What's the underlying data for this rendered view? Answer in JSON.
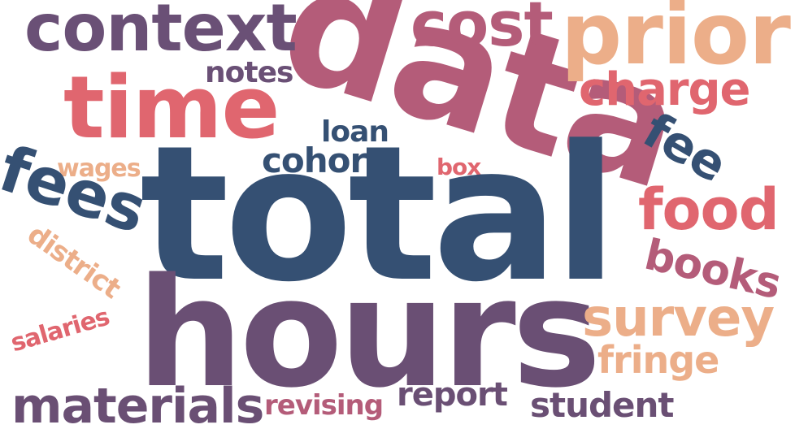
{
  "cloud": {
    "words": {
      "total": {
        "text": "total",
        "color": "#355073"
      },
      "hours": {
        "text": "hours",
        "color": "#6a4f74"
      },
      "data": {
        "text": "data",
        "color": "#b45c79"
      },
      "prior": {
        "text": "prior",
        "color": "#ecae89"
      },
      "time": {
        "text": "time",
        "color": "#e0666f"
      },
      "context": {
        "text": "context",
        "color": "#6a5076"
      },
      "cost": {
        "text": "cost",
        "color": "#b45c79"
      },
      "charge": {
        "text": "charge",
        "color": "#e0666f"
      },
      "fees": {
        "text": "fees",
        "color": "#355073"
      },
      "food": {
        "text": "food",
        "color": "#e0666f"
      },
      "fee": {
        "text": "fee",
        "color": "#355073"
      },
      "books": {
        "text": "books",
        "color": "#b45c79"
      },
      "survey": {
        "text": "survey",
        "color": "#ecae89"
      },
      "fringe": {
        "text": "fringe",
        "color": "#ecae89"
      },
      "materials": {
        "text": "materials",
        "color": "#6a4f74"
      },
      "student": {
        "text": "student",
        "color": "#6a4f74"
      },
      "report": {
        "text": "report",
        "color": "#6a4f74"
      },
      "revising": {
        "text": "revising",
        "color": "#b45c79"
      },
      "salaries": {
        "text": "salaries",
        "color": "#e0666f"
      },
      "district": {
        "text": "district",
        "color": "#ecae89"
      },
      "wages": {
        "text": "wages",
        "color": "#ecae89"
      },
      "notes": {
        "text": "notes",
        "color": "#6a5076"
      },
      "loan": {
        "text": "loan",
        "color": "#355073"
      },
      "cohort": {
        "text": "cohort",
        "color": "#355073"
      },
      "box": {
        "text": "box",
        "color": "#e0666f"
      }
    }
  }
}
